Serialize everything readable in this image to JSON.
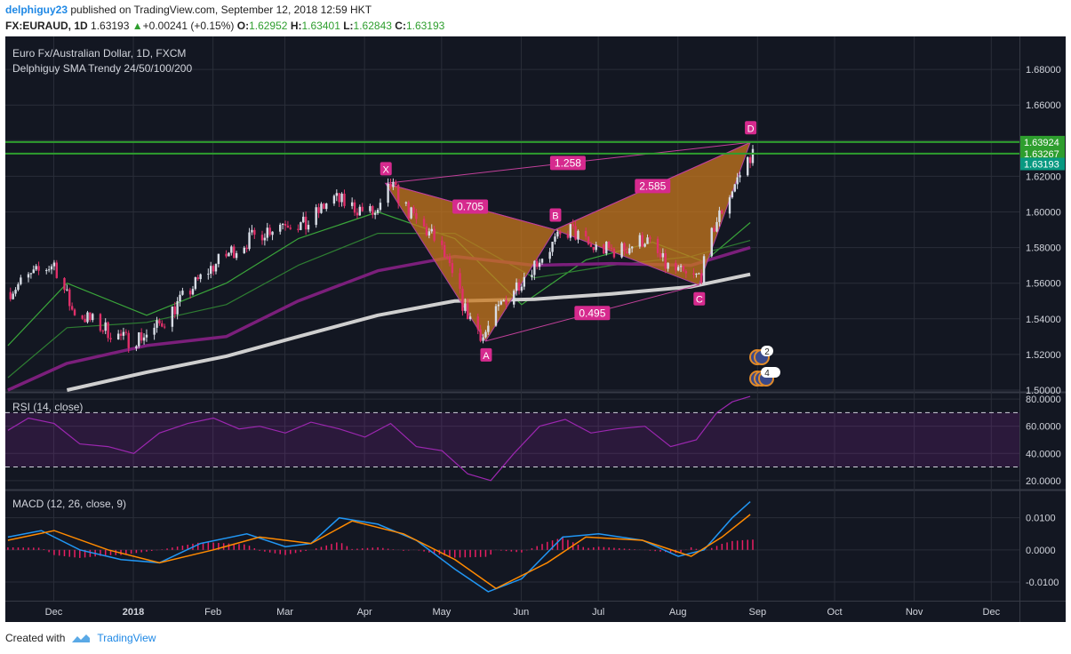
{
  "header": {
    "author": "delphiguy23",
    "published_text": "published on TradingView.com, September 12, 2018 12:59 HKT",
    "symbol": "FX:EURAUD, 1D",
    "last": "1.63193",
    "change": "+0.00241 (+0.15%)",
    "open_label": "O:",
    "open": "1.62952",
    "high_label": "H:",
    "high": "1.63401",
    "low_label": "L:",
    "low": "1.62843",
    "close_label": "C:",
    "close": "1.63193"
  },
  "footer": {
    "created_with": "Created with",
    "brand": "TradingView"
  },
  "colors": {
    "background": "#131722",
    "grid": "#2a2e39",
    "bull": "#d8dde6",
    "bear": "#e0306a",
    "sma24": "#3aa53a",
    "sma50": "#2e7d32",
    "sma100": "#7b1f7b",
    "sma200": "#cfcfcf",
    "harmonic_fill": "#c8781e",
    "pattern_label": "#d62a8e",
    "rsi_line": "#9c27b0",
    "macd_line": "#2196f3",
    "signal_line": "#ff8a00",
    "histogram": "#e91e63",
    "level_line": "#2e9e2e"
  },
  "chart_data": [
    {
      "type": "candlestick",
      "title": "Euro Fx/Australian Dollar, 1D, FXCM",
      "subtitle": "Delphiguy SMA Trendy 24/50/100/200",
      "x_ticks": [
        "Dec",
        "2018",
        "Feb",
        "Mar",
        "Apr",
        "May",
        "Jun",
        "Jul",
        "Aug",
        "Sep",
        "Oct",
        "Nov",
        "Dec"
      ],
      "y_ticks": [
        "1.50000",
        "1.52000",
        "1.54000",
        "1.56000",
        "1.58000",
        "1.60000",
        "1.62000",
        "1.64000",
        "1.66000",
        "1.68000"
      ],
      "ylim": [
        1.4995,
        1.6985
      ],
      "price_labels": [
        "1.63924",
        "1.63267",
        "1.63193"
      ],
      "horizontal_levels": [
        1.6392,
        1.6327
      ],
      "close_path": [
        {
          "d": "2017-11-27",
          "v": 1.555
        },
        {
          "d": "2017-12-05",
          "v": 1.563
        },
        {
          "d": "2017-12-15",
          "v": 1.571
        },
        {
          "d": "2017-12-22",
          "v": 1.545
        },
        {
          "d": "2018-01-03",
          "v": 1.535
        },
        {
          "d": "2018-01-12",
          "v": 1.528
        },
        {
          "d": "2018-01-22",
          "v": 1.532
        },
        {
          "d": "2018-02-01",
          "v": 1.548
        },
        {
          "d": "2018-02-12",
          "v": 1.566
        },
        {
          "d": "2018-02-22",
          "v": 1.578
        },
        {
          "d": "2018-03-05",
          "v": 1.588
        },
        {
          "d": "2018-03-15",
          "v": 1.595
        },
        {
          "d": "2018-03-23",
          "v": 1.592
        },
        {
          "d": "2018-04-02",
          "v": 1.608
        },
        {
          "d": "2018-04-10",
          "v": 1.603
        },
        {
          "d": "2018-04-20",
          "v": 1.598
        },
        {
          "d": "2018-04-25",
          "v": 1.615
        },
        {
          "d": "2018-05-03",
          "v": 1.598
        },
        {
          "d": "2018-05-14",
          "v": 1.582
        },
        {
          "d": "2018-05-24",
          "v": 1.545
        },
        {
          "d": "2018-05-31",
          "v": 1.53
        },
        {
          "d": "2018-06-08",
          "v": 1.55
        },
        {
          "d": "2018-06-18",
          "v": 1.568
        },
        {
          "d": "2018-06-28",
          "v": 1.583
        },
        {
          "d": "2018-07-04",
          "v": 1.59
        },
        {
          "d": "2018-07-12",
          "v": 1.58
        },
        {
          "d": "2018-07-23",
          "v": 1.578
        },
        {
          "d": "2018-08-02",
          "v": 1.585
        },
        {
          "d": "2018-08-10",
          "v": 1.57
        },
        {
          "d": "2018-08-20",
          "v": 1.562
        },
        {
          "d": "2018-08-24",
          "v": 1.565
        },
        {
          "d": "2018-08-29",
          "v": 1.592
        },
        {
          "d": "2018-09-04",
          "v": 1.61
        },
        {
          "d": "2018-09-12",
          "v": 1.6319
        }
      ],
      "series": [
        {
          "name": "SMA 24",
          "points": [
            {
              "d": "2017-11-27",
              "v": 1.525
            },
            {
              "d": "2017-12-20",
              "v": 1.56
            },
            {
              "d": "2018-01-20",
              "v": 1.542
            },
            {
              "d": "2018-02-20",
              "v": 1.56
            },
            {
              "d": "2018-03-20",
              "v": 1.585
            },
            {
              "d": "2018-04-20",
              "v": 1.6
            },
            {
              "d": "2018-05-20",
              "v": 1.585
            },
            {
              "d": "2018-06-15",
              "v": 1.548
            },
            {
              "d": "2018-07-10",
              "v": 1.573
            },
            {
              "d": "2018-08-05",
              "v": 1.583
            },
            {
              "d": "2018-08-25",
              "v": 1.572
            },
            {
              "d": "2018-09-12",
              "v": 1.594
            }
          ]
        },
        {
          "name": "SMA 50",
          "points": [
            {
              "d": "2017-11-27",
              "v": 1.507
            },
            {
              "d": "2017-12-20",
              "v": 1.535
            },
            {
              "d": "2018-01-20",
              "v": 1.538
            },
            {
              "d": "2018-02-20",
              "v": 1.548
            },
            {
              "d": "2018-03-20",
              "v": 1.57
            },
            {
              "d": "2018-04-20",
              "v": 1.588
            },
            {
              "d": "2018-05-20",
              "v": 1.588
            },
            {
              "d": "2018-06-20",
              "v": 1.563
            },
            {
              "d": "2018-07-20",
              "v": 1.57
            },
            {
              "d": "2018-08-20",
              "v": 1.575
            },
            {
              "d": "2018-09-12",
              "v": 1.584
            }
          ]
        },
        {
          "name": "SMA 100",
          "points": [
            {
              "d": "2017-11-27",
              "v": 1.5
            },
            {
              "d": "2017-12-20",
              "v": 1.515
            },
            {
              "d": "2018-01-20",
              "v": 1.525
            },
            {
              "d": "2018-02-20",
              "v": 1.53
            },
            {
              "d": "2018-03-20",
              "v": 1.55
            },
            {
              "d": "2018-04-20",
              "v": 1.567
            },
            {
              "d": "2018-05-20",
              "v": 1.575
            },
            {
              "d": "2018-06-20",
              "v": 1.57
            },
            {
              "d": "2018-07-20",
              "v": 1.571
            },
            {
              "d": "2018-08-20",
              "v": 1.57
            },
            {
              "d": "2018-09-12",
              "v": 1.58
            }
          ]
        },
        {
          "name": "SMA 200",
          "points": [
            {
              "d": "2017-12-20",
              "v": 1.5
            },
            {
              "d": "2018-01-20",
              "v": 1.51
            },
            {
              "d": "2018-02-20",
              "v": 1.519
            },
            {
              "d": "2018-03-20",
              "v": 1.53
            },
            {
              "d": "2018-04-20",
              "v": 1.542
            },
            {
              "d": "2018-05-20",
              "v": 1.55
            },
            {
              "d": "2018-06-20",
              "v": 1.551
            },
            {
              "d": "2018-07-20",
              "v": 1.554
            },
            {
              "d": "2018-08-20",
              "v": 1.558
            },
            {
              "d": "2018-09-12",
              "v": 1.565
            }
          ]
        }
      ],
      "harmonic_pattern": {
        "points": [
          {
            "label": "X",
            "d": "2018-04-23",
            "v": 1.616
          },
          {
            "label": "A",
            "d": "2018-06-01",
            "v": 1.5275
          },
          {
            "label": "B",
            "d": "2018-06-28",
            "v": 1.59
          },
          {
            "label": "C",
            "d": "2018-08-23",
            "v": 1.559
          },
          {
            "label": "D",
            "d": "2018-09-12",
            "v": 1.639
          }
        ],
        "ratios": [
          {
            "label": "0.705",
            "between": [
              "X",
              "B"
            ]
          },
          {
            "label": "0.495",
            "between": [
              "A",
              "C"
            ]
          },
          {
            "label": "2.585",
            "between": [
              "B",
              "D"
            ]
          },
          {
            "label": "1.258",
            "between": [
              "X",
              "D"
            ]
          }
        ]
      },
      "event_markers": [
        {
          "count": "2"
        },
        {
          "count": "4"
        }
      ]
    },
    {
      "type": "line",
      "title": "RSI (14, close)",
      "y_ticks": [
        "20.0000",
        "40.0000",
        "60.0000",
        "80.0000"
      ],
      "ylim": [
        14,
        84
      ],
      "bands": [
        30,
        70
      ],
      "points": [
        {
          "d": "2017-11-27",
          "v": 57
        },
        {
          "d": "2017-12-05",
          "v": 66
        },
        {
          "d": "2017-12-15",
          "v": 62
        },
        {
          "d": "2017-12-25",
          "v": 47
        },
        {
          "d": "2018-01-05",
          "v": 45
        },
        {
          "d": "2018-01-15",
          "v": 40
        },
        {
          "d": "2018-01-25",
          "v": 55
        },
        {
          "d": "2018-02-05",
          "v": 62
        },
        {
          "d": "2018-02-15",
          "v": 66
        },
        {
          "d": "2018-02-25",
          "v": 58
        },
        {
          "d": "2018-03-05",
          "v": 60
        },
        {
          "d": "2018-03-15",
          "v": 55
        },
        {
          "d": "2018-03-25",
          "v": 63
        },
        {
          "d": "2018-04-05",
          "v": 58
        },
        {
          "d": "2018-04-15",
          "v": 52
        },
        {
          "d": "2018-04-25",
          "v": 62
        },
        {
          "d": "2018-05-05",
          "v": 45
        },
        {
          "d": "2018-05-15",
          "v": 42
        },
        {
          "d": "2018-05-25",
          "v": 25
        },
        {
          "d": "2018-06-03",
          "v": 20
        },
        {
          "d": "2018-06-12",
          "v": 40
        },
        {
          "d": "2018-06-22",
          "v": 60
        },
        {
          "d": "2018-07-02",
          "v": 65
        },
        {
          "d": "2018-07-12",
          "v": 55
        },
        {
          "d": "2018-07-22",
          "v": 58
        },
        {
          "d": "2018-08-02",
          "v": 60
        },
        {
          "d": "2018-08-12",
          "v": 45
        },
        {
          "d": "2018-08-22",
          "v": 50
        },
        {
          "d": "2018-08-30",
          "v": 70
        },
        {
          "d": "2018-09-05",
          "v": 78
        },
        {
          "d": "2018-09-12",
          "v": 82
        }
      ]
    },
    {
      "type": "line",
      "title": "MACD (12, 26, close, 9)",
      "y_ticks": [
        "-0.0100",
        "0.0000",
        "0.0100"
      ],
      "ylim": [
        -0.0158,
        0.0182
      ],
      "series": [
        {
          "name": "MACD",
          "points": [
            {
              "d": "2017-11-27",
              "v": 0.004
            },
            {
              "d": "2017-12-10",
              "v": 0.006
            },
            {
              "d": "2017-12-25",
              "v": 0.0
            },
            {
              "d": "2018-01-10",
              "v": -0.003
            },
            {
              "d": "2018-01-25",
              "v": -0.004
            },
            {
              "d": "2018-02-10",
              "v": 0.002
            },
            {
              "d": "2018-02-28",
              "v": 0.005
            },
            {
              "d": "2018-03-15",
              "v": 0.001
            },
            {
              "d": "2018-03-25",
              "v": 0.002
            },
            {
              "d": "2018-04-05",
              "v": 0.01
            },
            {
              "d": "2018-04-20",
              "v": 0.008
            },
            {
              "d": "2018-05-05",
              "v": 0.003
            },
            {
              "d": "2018-05-20",
              "v": -0.006
            },
            {
              "d": "2018-06-02",
              "v": -0.013
            },
            {
              "d": "2018-06-15",
              "v": -0.009
            },
            {
              "d": "2018-07-01",
              "v": 0.004
            },
            {
              "d": "2018-07-15",
              "v": 0.005
            },
            {
              "d": "2018-08-01",
              "v": 0.003
            },
            {
              "d": "2018-08-15",
              "v": -0.002
            },
            {
              "d": "2018-08-25",
              "v": 0.0
            },
            {
              "d": "2018-09-05",
              "v": 0.01
            },
            {
              "d": "2018-09-12",
              "v": 0.015
            }
          ]
        },
        {
          "name": "Signal",
          "points": [
            {
              "d": "2017-11-27",
              "v": 0.003
            },
            {
              "d": "2017-12-15",
              "v": 0.006
            },
            {
              "d": "2018-01-05",
              "v": 0.0
            },
            {
              "d": "2018-01-25",
              "v": -0.004
            },
            {
              "d": "2018-02-15",
              "v": 0.0
            },
            {
              "d": "2018-03-05",
              "v": 0.004
            },
            {
              "d": "2018-03-25",
              "v": 0.002
            },
            {
              "d": "2018-04-10",
              "v": 0.009
            },
            {
              "d": "2018-04-30",
              "v": 0.005
            },
            {
              "d": "2018-05-20",
              "v": -0.003
            },
            {
              "d": "2018-06-05",
              "v": -0.012
            },
            {
              "d": "2018-06-25",
              "v": -0.004
            },
            {
              "d": "2018-07-10",
              "v": 0.004
            },
            {
              "d": "2018-08-01",
              "v": 0.003
            },
            {
              "d": "2018-08-20",
              "v": -0.002
            },
            {
              "d": "2018-09-01",
              "v": 0.004
            },
            {
              "d": "2018-09-12",
              "v": 0.011
            }
          ]
        }
      ]
    }
  ]
}
